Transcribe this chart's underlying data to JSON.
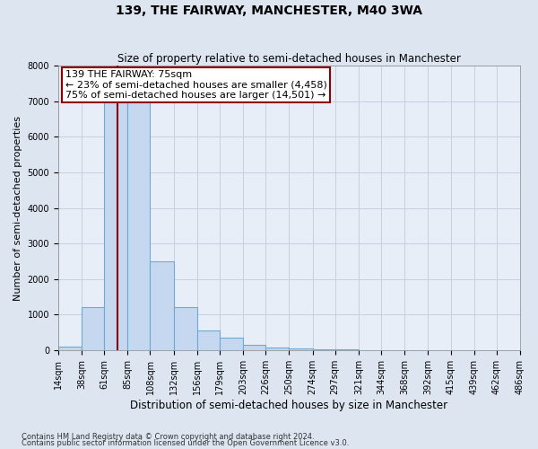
{
  "title": "139, THE FAIRWAY, MANCHESTER, M40 3WA",
  "subtitle": "Size of property relative to semi-detached houses in Manchester",
  "xlabel": "Distribution of semi-detached houses by size in Manchester",
  "ylabel": "Number of semi-detached properties",
  "footnote1": "Contains HM Land Registry data © Crown copyright and database right 2024.",
  "footnote2": "Contains public sector information licensed under the Open Government Licence v3.0.",
  "bin_edges": [
    14,
    38,
    61,
    85,
    108,
    132,
    156,
    179,
    203,
    226,
    250,
    274,
    297,
    321,
    344,
    368,
    392,
    415,
    439,
    462,
    486
  ],
  "bar_heights": [
    100,
    1200,
    7600,
    7700,
    2500,
    1200,
    550,
    350,
    150,
    80,
    40,
    20,
    10,
    8,
    5,
    4,
    3,
    2,
    1,
    1
  ],
  "bar_color": "#c5d8f0",
  "bar_edge_color": "#6aaad4",
  "property_size": 75,
  "vline_color": "#8b0000",
  "annotation_line1": "139 THE FAIRWAY: 75sqm",
  "annotation_line2": "← 23% of semi-detached houses are smaller (4,458)",
  "annotation_line3": "75% of semi-detached houses are larger (14,501) →",
  "annotation_box_color": "#ffffff",
  "annotation_box_edge": "#8b0000",
  "grid_color": "#c8d0e0",
  "background_color": "#dde5f0",
  "plot_bg_color": "#e8eef8",
  "ylim": [
    0,
    8000
  ],
  "yticks": [
    0,
    1000,
    2000,
    3000,
    4000,
    5000,
    6000,
    7000,
    8000
  ],
  "title_fontsize": 10,
  "subtitle_fontsize": 8.5,
  "tick_label_fontsize": 7,
  "ylabel_fontsize": 8,
  "xlabel_fontsize": 8.5,
  "annotation_fontsize": 8
}
